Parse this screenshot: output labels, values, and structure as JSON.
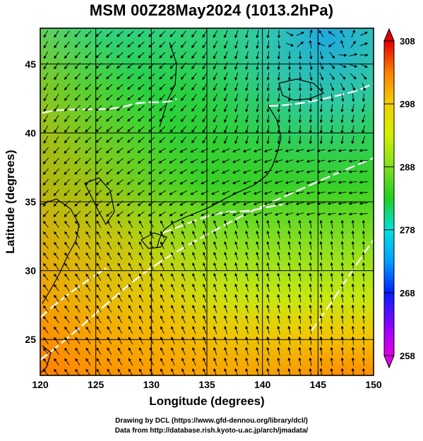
{
  "title": "MSM 00Z28May2024 (1013.2hPa)",
  "map": {
    "xlabel": "Longitude (degrees)",
    "ylabel": "Latitude  (degrees)",
    "xticks": [
      "120",
      "125",
      "130",
      "135",
      "140",
      "145",
      "150"
    ],
    "yticks": [
      "25",
      "30",
      "35",
      "40",
      "45"
    ],
    "lon_range": [
      120,
      150
    ],
    "lat_range": [
      22.4,
      47.6
    ]
  },
  "colorbar": {
    "ticks": [
      "258",
      "268",
      "278",
      "288",
      "298",
      "308"
    ],
    "range": [
      258,
      308
    ],
    "colors": [
      "#e000e0",
      "#a000ff",
      "#0020ff",
      "#00a0ff",
      "#00e0e0",
      "#00d0a0",
      "#20d020",
      "#80e020",
      "#d0f000",
      "#f0d000",
      "#ff9000",
      "#ff4000",
      "#e00000"
    ]
  },
  "credit": {
    "line1": "Drawing by DCL (https://www.gfd-dennou.org/library/dcl/)",
    "line2": "Data from http://database.rish.kyoto-u.ac.jp/arch/jmadata/"
  }
}
